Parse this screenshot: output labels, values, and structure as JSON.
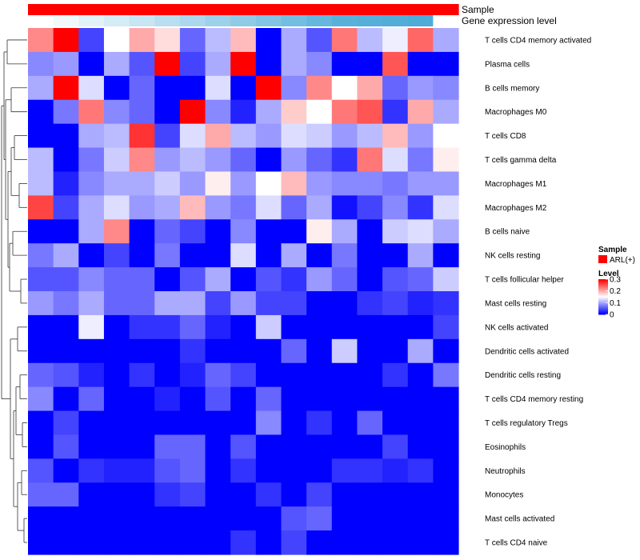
{
  "chart_data": {
    "type": "heatmap",
    "title": "",
    "column_annotations": [
      {
        "name": "Sample",
        "legend_entry": "ARL(+)",
        "color": "#ff0000"
      },
      {
        "name": "Gene expression level",
        "colors": [
          "#ffffff",
          "#f1f8fc",
          "#e3f2f9",
          "#d5ebf6",
          "#c7e5f3",
          "#b9deef",
          "#abd8ec",
          "#9dd1e9",
          "#8fcbe6",
          "#81c4e3",
          "#73bee0",
          "#65b7dd",
          "#59b1da",
          "#55afda",
          "#52add9",
          "#4fabd8"
        ]
      }
    ],
    "rows": [
      "T cells CD4 memory activated",
      "Plasma cells",
      "B cells memory",
      "Macrophages M0",
      "T cells CD8",
      "T cells gamma delta",
      "Macrophages M1",
      "Macrophages M2",
      "B cells naive",
      "NK cells resting",
      "T cells follicular helper",
      "Mast cells resting",
      "NK cells activated",
      "Dendritic cells activated",
      "Dendritic cells resting",
      "T cells CD4 memory resting",
      "T cells regulatory  Tregs",
      "Eosinophils",
      "Neutrophils",
      "Monocytes",
      "Mast cells activated",
      "T cells CD4 naive"
    ],
    "values": [
      [
        0.22,
        0.3,
        0.04,
        0.15,
        0.2,
        0.17,
        0.06,
        0.11,
        0.19,
        0.0,
        0.1,
        0.05,
        0.23,
        0.11,
        0.14,
        0.24,
        0.1
      ],
      [
        0.08,
        0.09,
        0.0,
        0.1,
        0.05,
        0.3,
        0.04,
        0.1,
        0.3,
        0.0,
        0.1,
        0.08,
        0.0,
        0.0,
        0.25,
        0.0,
        0.0
      ],
      [
        0.1,
        0.3,
        0.13,
        0.0,
        0.06,
        0.0,
        0.0,
        0.13,
        0.0,
        0.3,
        0.08,
        0.22,
        0.15,
        0.2,
        0.06,
        0.09,
        0.08
      ],
      [
        0.0,
        0.07,
        0.23,
        0.08,
        0.06,
        0.0,
        0.3,
        0.08,
        0.02,
        0.1,
        0.18,
        0.15,
        0.23,
        0.25,
        0.03,
        0.2,
        0.1
      ],
      [
        0.0,
        0.0,
        0.1,
        0.11,
        0.27,
        0.04,
        0.13,
        0.2,
        0.11,
        0.09,
        0.13,
        0.12,
        0.09,
        0.11,
        0.19,
        0.09,
        0.15
      ],
      [
        0.11,
        0.0,
        0.07,
        0.12,
        0.22,
        0.09,
        0.11,
        0.09,
        0.06,
        0.0,
        0.09,
        0.06,
        0.03,
        0.23,
        0.13,
        0.07,
        0.16
      ],
      [
        0.11,
        0.02,
        0.08,
        0.1,
        0.1,
        0.12,
        0.09,
        0.16,
        0.09,
        0.15,
        0.19,
        0.09,
        0.08,
        0.08,
        0.07,
        0.09,
        0.09
      ],
      [
        0.26,
        0.04,
        0.1,
        0.13,
        0.09,
        0.1,
        0.19,
        0.09,
        0.07,
        0.13,
        0.06,
        0.1,
        0.01,
        0.04,
        0.08,
        0.03,
        0.13
      ],
      [
        0.0,
        0.0,
        0.1,
        0.22,
        0.0,
        0.06,
        0.04,
        0.0,
        0.08,
        0.0,
        0.0,
        0.16,
        0.1,
        0.0,
        0.12,
        0.13,
        0.1
      ],
      [
        0.07,
        0.1,
        0.0,
        0.04,
        0.0,
        0.07,
        0.0,
        0.0,
        0.13,
        0.0,
        0.1,
        0.0,
        0.07,
        0.0,
        0.0,
        0.1,
        0.0
      ],
      [
        0.05,
        0.05,
        0.08,
        0.06,
        0.06,
        0.0,
        0.05,
        0.1,
        0.0,
        0.05,
        0.03,
        0.09,
        0.06,
        0.0,
        0.05,
        0.06,
        0.12
      ],
      [
        0.09,
        0.07,
        0.1,
        0.06,
        0.06,
        0.1,
        0.1,
        0.04,
        0.09,
        0.04,
        0.04,
        0.0,
        0.0,
        0.03,
        0.04,
        0.02,
        0.03
      ],
      [
        0.0,
        0.0,
        0.14,
        0.0,
        0.03,
        0.03,
        0.06,
        0.02,
        0.0,
        0.12,
        0.0,
        0.0,
        0.0,
        0.0,
        0.0,
        0.0,
        0.04
      ],
      [
        0.0,
        0.0,
        0.0,
        0.0,
        0.0,
        0.0,
        0.03,
        0.0,
        0.0,
        0.0,
        0.06,
        0.0,
        0.12,
        0.0,
        0.0,
        0.1,
        0.0
      ],
      [
        0.06,
        0.05,
        0.02,
        0.0,
        0.03,
        0.0,
        0.02,
        0.06,
        0.04,
        0.0,
        0.0,
        0.0,
        0.0,
        0.0,
        0.03,
        0.0,
        0.07
      ],
      [
        0.08,
        0.0,
        0.06,
        0.0,
        0.0,
        0.02,
        0.0,
        0.05,
        0.0,
        0.06,
        0.0,
        0.0,
        0.0,
        0.0,
        0.0,
        0.0,
        0.0
      ],
      [
        0.0,
        0.04,
        0.0,
        0.0,
        0.0,
        0.0,
        0.0,
        0.0,
        0.0,
        0.08,
        0.0,
        0.03,
        0.0,
        0.06,
        0.0,
        0.0,
        0.0
      ],
      [
        0.0,
        0.05,
        0.0,
        0.0,
        0.0,
        0.06,
        0.06,
        0.0,
        0.05,
        0.0,
        0.0,
        0.0,
        0.0,
        0.0,
        0.04,
        0.0,
        0.0
      ],
      [
        0.05,
        0.0,
        0.03,
        0.02,
        0.02,
        0.05,
        0.06,
        0.0,
        0.03,
        0.0,
        0.0,
        0.0,
        0.03,
        0.03,
        0.02,
        0.03,
        0.0
      ],
      [
        0.06,
        0.06,
        0.0,
        0.0,
        0.0,
        0.03,
        0.04,
        0.0,
        0.0,
        0.03,
        0.0,
        0.04,
        0.0,
        0.0,
        0.0,
        0.0,
        0.0
      ],
      [
        0.0,
        0.0,
        0.0,
        0.0,
        0.0,
        0.0,
        0.0,
        0.0,
        0.0,
        0.0,
        0.05,
        0.06,
        0.0,
        0.0,
        0.0,
        0.0,
        0.0
      ],
      [
        0.0,
        0.0,
        0.0,
        0.0,
        0.0,
        0.0,
        0.0,
        0.0,
        0.03,
        0.0,
        0.04,
        0.0,
        0.0,
        0.0,
        0.0,
        0.0,
        0.0
      ]
    ],
    "color_scale": {
      "min": 0,
      "max": 0.3,
      "low": "#0000ff",
      "mid": "#ffffff",
      "high": "#ff0000"
    },
    "legend": {
      "sample_title": "Sample",
      "level_title": "Level",
      "ticks": [
        "0.3",
        "0.2",
        "0.1",
        "0"
      ],
      "tick_values": [
        0.3,
        0.2,
        0.1,
        0
      ]
    }
  }
}
